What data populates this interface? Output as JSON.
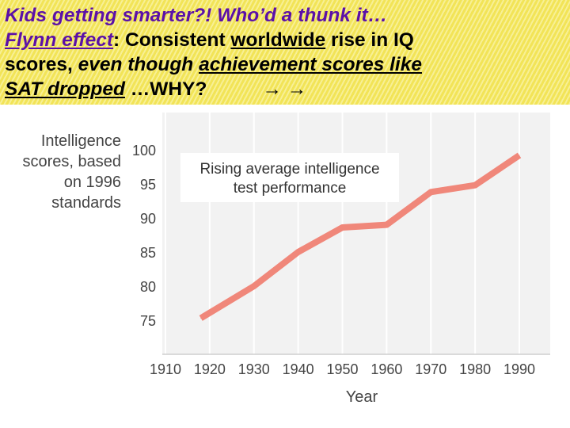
{
  "header": {
    "line1": "Kids getting smarter?!  Who’d a thunk it…",
    "line2_a": "Flynn effect",
    "line2_b": ":  Consistent ",
    "line2_c": "worldwide",
    "line2_d": " rise in IQ",
    "line3_a": "scores, ",
    "line3_b": "even though ",
    "line3_c": "achievement scores like",
    "line4_a": "SAT dropped",
    "line4_b": "   …WHY?",
    "arrows": "→ →"
  },
  "colors": {
    "purple": "#5b10a8",
    "line": "#f0877a",
    "highlighter": "#f1e24e"
  },
  "chart_data": {
    "type": "line",
    "ylabel_lines": [
      "Intelligence",
      "scores, based",
      "on 1996",
      "standards"
    ],
    "xlabel": "Year",
    "annotation_lines": [
      "Rising average intelligence",
      "test performance"
    ],
    "x": [
      1918,
      1930,
      1940,
      1950,
      1960,
      1970,
      1980,
      1990
    ],
    "y": [
      75.3,
      80,
      85,
      88.6,
      89,
      93.8,
      94.8,
      99.2
    ],
    "xlim": [
      1910,
      1990
    ],
    "ylim": [
      75,
      100
    ],
    "xticks": [
      1910,
      1920,
      1930,
      1940,
      1950,
      1960,
      1970,
      1980,
      1990
    ],
    "yticks": [
      75,
      80,
      85,
      90,
      95,
      100
    ],
    "grid": "vertical"
  }
}
